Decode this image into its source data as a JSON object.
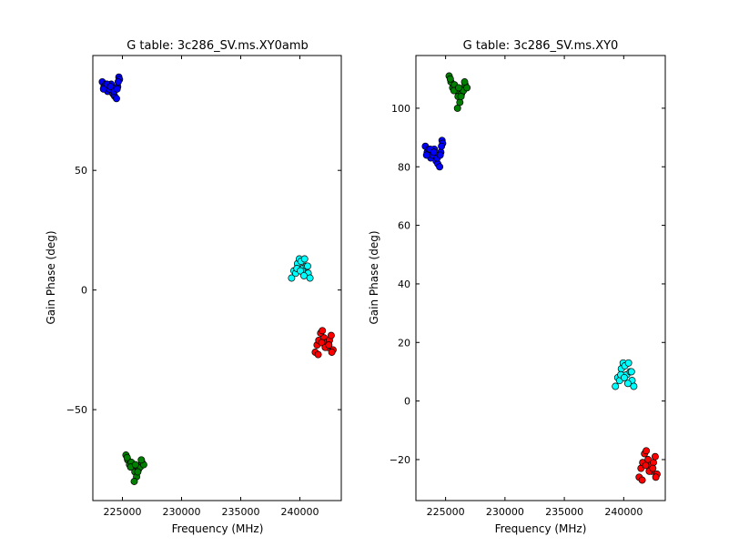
{
  "chart_data": [
    {
      "type": "scatter",
      "title": "G table: 3c286_SV.ms.XY0amb",
      "xlabel": "Frequency (MHz)",
      "ylabel": "Gain Phase (deg)",
      "xlim": [
        222500,
        243500
      ],
      "ylim": [
        -88,
        98
      ],
      "xticks": [
        225000,
        230000,
        235000,
        240000
      ],
      "xtick_labels": [
        "225000",
        "230000",
        "235000",
        "240000"
      ],
      "yticks": [
        -50,
        0,
        50
      ],
      "ytick_labels": [
        "−50",
        "0",
        "50"
      ],
      "grid": false,
      "series": [
        {
          "color": "#0000ff",
          "x": [
            223300,
            223450,
            223600,
            223750,
            223900,
            224050,
            224200,
            224350,
            224500,
            224600,
            224700,
            224750,
            223400,
            223700,
            224000,
            224300,
            224550,
            224650
          ],
          "y": [
            87,
            85,
            86,
            83,
            84,
            86,
            82,
            81,
            80,
            85,
            89,
            88,
            84,
            86,
            85,
            83,
            84,
            87
          ]
        },
        {
          "color": "#008000",
          "x": [
            225300,
            225450,
            225600,
            225750,
            225900,
            226050,
            226200,
            226350,
            226500,
            226650,
            226800,
            225400,
            225700,
            226000,
            226300,
            226600,
            226100
          ],
          "y": [
            -69,
            -71,
            -73,
            -72,
            -74,
            -76,
            -78,
            -75,
            -74,
            -72,
            -73,
            -70,
            -74,
            -80,
            -76,
            -71,
            -73
          ]
        },
        {
          "color": "#00ffff",
          "x": [
            239300,
            239500,
            239650,
            239800,
            239950,
            240100,
            240250,
            240400,
            240550,
            240700,
            240850,
            239750,
            240050,
            240350,
            240650
          ],
          "y": [
            5,
            8,
            7,
            11,
            13,
            12,
            9,
            13,
            10,
            7,
            5,
            9,
            8,
            6,
            10
          ]
        },
        {
          "color": "#ff0000",
          "x": [
            241300,
            241450,
            241600,
            241750,
            241900,
            242050,
            242200,
            242350,
            242500,
            242650,
            242800,
            241550,
            241850,
            242150,
            242450,
            242700
          ],
          "y": [
            -26,
            -23,
            -21,
            -18,
            -17,
            -20,
            -22,
            -24,
            -21,
            -19,
            -25,
            -27,
            -22,
            -24,
            -23,
            -26
          ]
        }
      ]
    },
    {
      "type": "scatter",
      "title": "G table: 3c286_SV.ms.XY0",
      "xlabel": "Frequency (MHz)",
      "ylabel": "Gain Phase (deg)",
      "xlim": [
        222500,
        243500
      ],
      "ylim": [
        -34,
        118
      ],
      "xticks": [
        225000,
        230000,
        235000,
        240000
      ],
      "xtick_labels": [
        "225000",
        "230000",
        "235000",
        "240000"
      ],
      "yticks": [
        -20,
        0,
        20,
        40,
        60,
        80,
        100
      ],
      "ytick_labels": [
        "−20",
        "0",
        "20",
        "40",
        "60",
        "80",
        "100"
      ],
      "grid": false,
      "series": [
        {
          "color": "#0000ff",
          "x": [
            223300,
            223450,
            223600,
            223750,
            223900,
            224050,
            224200,
            224350,
            224500,
            224600,
            224700,
            224750,
            223400,
            223700,
            224000,
            224300,
            224550,
            224650
          ],
          "y": [
            87,
            85,
            86,
            83,
            84,
            86,
            82,
            81,
            80,
            85,
            89,
            88,
            84,
            86,
            85,
            83,
            84,
            87
          ]
        },
        {
          "color": "#008000",
          "x": [
            225300,
            225450,
            225600,
            225750,
            225900,
            226050,
            226200,
            226350,
            226500,
            226650,
            226800,
            225400,
            225700,
            226000,
            226300,
            226600,
            226100
          ],
          "y": [
            111,
            109,
            107,
            108,
            106,
            104,
            102,
            105,
            106,
            108,
            107,
            110,
            106,
            100,
            104,
            109,
            107
          ]
        },
        {
          "color": "#00ffff",
          "x": [
            239300,
            239500,
            239650,
            239800,
            239950,
            240100,
            240250,
            240400,
            240550,
            240700,
            240850,
            239750,
            240050,
            240350,
            240650
          ],
          "y": [
            5,
            8,
            7,
            11,
            13,
            12,
            9,
            13,
            10,
            7,
            5,
            9,
            8,
            6,
            10
          ]
        },
        {
          "color": "#ff0000",
          "x": [
            241300,
            241450,
            241600,
            241750,
            241900,
            242050,
            242200,
            242350,
            242500,
            242650,
            242800,
            241550,
            241850,
            242150,
            242450,
            242700
          ],
          "y": [
            -26,
            -23,
            -21,
            -18,
            -17,
            -20,
            -22,
            -24,
            -21,
            -19,
            -25,
            -27,
            -22,
            -24,
            -23,
            -26
          ]
        }
      ]
    }
  ]
}
